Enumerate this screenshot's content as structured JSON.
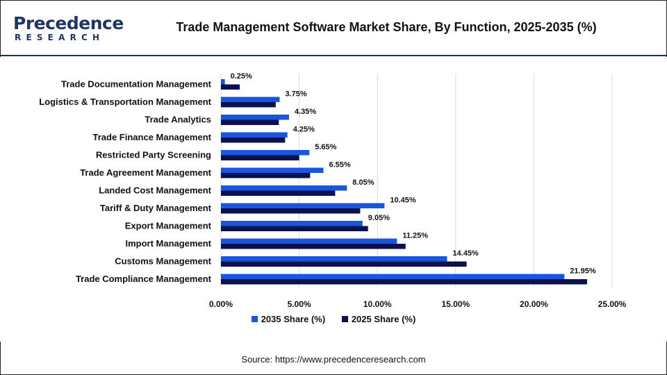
{
  "brand": {
    "logo_text": "Precedence",
    "logo_subtext": "RESEARCH",
    "logo_color": "#1f3566",
    "accent_color": "#3ba7e0"
  },
  "header": {
    "title": "Trade Management Software Market Share, By Function, 2025-2035 (%)"
  },
  "legend": {
    "series_2035": "2035 Share (%)",
    "series_2025": "2025 Share (%)"
  },
  "footer": {
    "source": "Source: https://www.precedenceresearch.com"
  },
  "colors": {
    "series_2035": "#1a56db",
    "series_2025": "#0b1150",
    "grid": "#d9d9d9"
  },
  "chart_data": {
    "type": "bar",
    "orientation": "horizontal",
    "categories": [
      "Trade Documentation Management",
      "Logistics & Transportation Management",
      "Trade Analytics",
      "Trade Finance Management",
      "Restricted Party Screening",
      "Trade Agreement Management",
      "Landed Cost Management",
      "Tariff & Duty Management",
      "Export Management",
      "Import Management",
      "Customs Management",
      "Trade Compliance Management"
    ],
    "series": [
      {
        "name": "2035 Share (%)",
        "values": [
          0.25,
          3.75,
          4.35,
          4.25,
          5.65,
          6.55,
          8.05,
          10.45,
          9.05,
          11.25,
          14.45,
          21.95
        ],
        "labels": [
          "0.25%",
          "3.75%",
          "4.35%",
          "4.25%",
          "5.65%",
          "6.55%",
          "8.05%",
          "10.45%",
          "9.05%",
          "11.25%",
          "14.45%",
          "21.95%"
        ]
      },
      {
        "name": "2025 Share (%)",
        "values": [
          1.2,
          3.5,
          3.7,
          4.1,
          5.0,
          5.7,
          7.3,
          8.9,
          9.4,
          11.8,
          15.7,
          23.4
        ]
      }
    ],
    "xlim": [
      0,
      25
    ],
    "xticks": [
      "0.00%",
      "5.00%",
      "10.00%",
      "15.00%",
      "20.00%",
      "25.00%"
    ],
    "xtick_values": [
      0,
      5,
      10,
      15,
      20,
      25
    ],
    "grid": true,
    "legend_position": "bottom"
  }
}
